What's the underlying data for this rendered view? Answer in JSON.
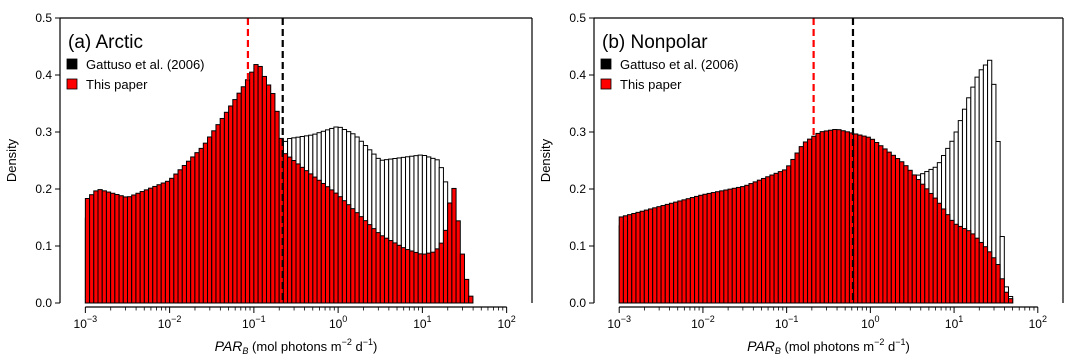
{
  "chart_data": [
    {
      "type": "bar",
      "title": "(a) Arctic",
      "xlabel_parts": [
        "PAR",
        "B",
        "(mol photons m",
        "−2",
        " d",
        "−1",
        ")"
      ],
      "ylabel": "Density",
      "xscale": "log",
      "xlim": [
        0.0005,
        200
      ],
      "ylim": [
        0,
        0.5
      ],
      "xticks": [
        {
          "base": "10",
          "exp": "−3",
          "value": 0.001
        },
        {
          "base": "10",
          "exp": "−2",
          "value": 0.01
        },
        {
          "base": "10",
          "exp": "−1",
          "value": 0.1
        },
        {
          "base": "10",
          "exp": "0",
          "value": 1
        },
        {
          "base": "10",
          "exp": "1",
          "value": 10
        },
        {
          "base": "10",
          "exp": "2",
          "value": 100
        }
      ],
      "yticks": [
        "0.0",
        "0.1",
        "0.2",
        "0.3",
        "0.4",
        "0.5"
      ],
      "legend_position": "top-left",
      "bins": {
        "log10_start": -3,
        "log10_step": 0.05
      },
      "series": [
        {
          "name": "Gattuso et al. (2006)",
          "fill": "#ffffff",
          "stroke": "#000000",
          "median": 0.22,
          "profile": [
            [
              -3,
              0.148
            ],
            [
              -2.5,
              0.165
            ],
            [
              -2,
              0.18
            ],
            [
              -1.5,
              0.21
            ],
            [
              -1,
              0.265
            ],
            [
              -0.7,
              0.27
            ],
            [
              -0.6,
              0.288
            ],
            [
              -0.3,
              0.295
            ],
            [
              0,
              0.31
            ],
            [
              0.2,
              0.295
            ],
            [
              0.5,
              0.25
            ],
            [
              1.0,
              0.26
            ],
            [
              1.2,
              0.25
            ],
            [
              1.3,
              0.2
            ],
            [
              1.4,
              0.1
            ],
            [
              1.48,
              0.05
            ],
            [
              1.52,
              0.005
            ]
          ]
        },
        {
          "name": "This paper",
          "fill": "#ff0000",
          "stroke": "#000000",
          "median": 0.085,
          "profile": [
            [
              -3,
              0.18
            ],
            [
              -2.85,
              0.2
            ],
            [
              -2.5,
              0.185
            ],
            [
              -2,
              0.215
            ],
            [
              -1.6,
              0.275
            ],
            [
              -1.3,
              0.34
            ],
            [
              -1.1,
              0.385
            ],
            [
              -0.95,
              0.425
            ],
            [
              -0.9,
              0.405
            ],
            [
              -0.75,
              0.36
            ],
            [
              -0.65,
              0.265
            ],
            [
              -0.4,
              0.235
            ],
            [
              0,
              0.19
            ],
            [
              0.5,
              0.12
            ],
            [
              0.8,
              0.095
            ],
            [
              1,
              0.085
            ],
            [
              1.15,
              0.09
            ],
            [
              1.25,
              0.11
            ],
            [
              1.3,
              0.145
            ],
            [
              1.36,
              0.218
            ],
            [
              1.42,
              0.15
            ],
            [
              1.48,
              0.08
            ],
            [
              1.55,
              0.02
            ],
            [
              1.6,
              0.004
            ]
          ]
        }
      ]
    },
    {
      "type": "bar",
      "title": "(b) Nonpolar",
      "xlabel_parts": [
        "PAR",
        "B",
        "(mol photons m",
        "−2",
        " d",
        "−1",
        ")"
      ],
      "ylabel": "Density",
      "xscale": "log",
      "xlim": [
        0.0005,
        200
      ],
      "ylim": [
        0,
        0.5
      ],
      "xticks": [
        {
          "base": "10",
          "exp": "−3",
          "value": 0.001
        },
        {
          "base": "10",
          "exp": "−2",
          "value": 0.01
        },
        {
          "base": "10",
          "exp": "−1",
          "value": 0.1
        },
        {
          "base": "10",
          "exp": "0",
          "value": 1
        },
        {
          "base": "10",
          "exp": "1",
          "value": 10
        },
        {
          "base": "10",
          "exp": "2",
          "value": 100
        }
      ],
      "yticks": [
        "0.0",
        "0.1",
        "0.2",
        "0.3",
        "0.4",
        "0.5"
      ],
      "legend_position": "top-left",
      "bins": {
        "log10_start": -3,
        "log10_step": 0.05
      },
      "series": [
        {
          "name": "Gattuso et al. (2006)",
          "fill": "#ffffff",
          "stroke": "#000000",
          "median": 0.62,
          "profile": [
            [
              -3,
              0.135
            ],
            [
              -2,
              0.16
            ],
            [
              -1,
              0.205
            ],
            [
              -0.5,
              0.225
            ],
            [
              0,
              0.22
            ],
            [
              0.4,
              0.22
            ],
            [
              0.6,
              0.225
            ],
            [
              0.8,
              0.24
            ],
            [
              1,
              0.29
            ],
            [
              1.2,
              0.37
            ],
            [
              1.3,
              0.405
            ],
            [
              1.45,
              0.43
            ],
            [
              1.52,
              0.3
            ],
            [
              1.58,
              0.1
            ],
            [
              1.62,
              0.03
            ],
            [
              1.7,
              0.003
            ]
          ]
        },
        {
          "name": "This paper",
          "fill": "#ff0000",
          "stroke": "#000000",
          "median": 0.21,
          "profile": [
            [
              -3,
              0.15
            ],
            [
              -2.5,
              0.17
            ],
            [
              -2,
              0.19
            ],
            [
              -1.5,
              0.205
            ],
            [
              -1,
              0.235
            ],
            [
              -0.8,
              0.28
            ],
            [
              -0.6,
              0.3
            ],
            [
              -0.4,
              0.305
            ],
            [
              0,
              0.29
            ],
            [
              0.4,
              0.245
            ],
            [
              0.8,
              0.18
            ],
            [
              1,
              0.14
            ],
            [
              1.2,
              0.125
            ],
            [
              1.4,
              0.095
            ],
            [
              1.52,
              0.07
            ],
            [
              1.62,
              0.02
            ],
            [
              1.7,
              0.002
            ]
          ]
        }
      ]
    }
  ]
}
